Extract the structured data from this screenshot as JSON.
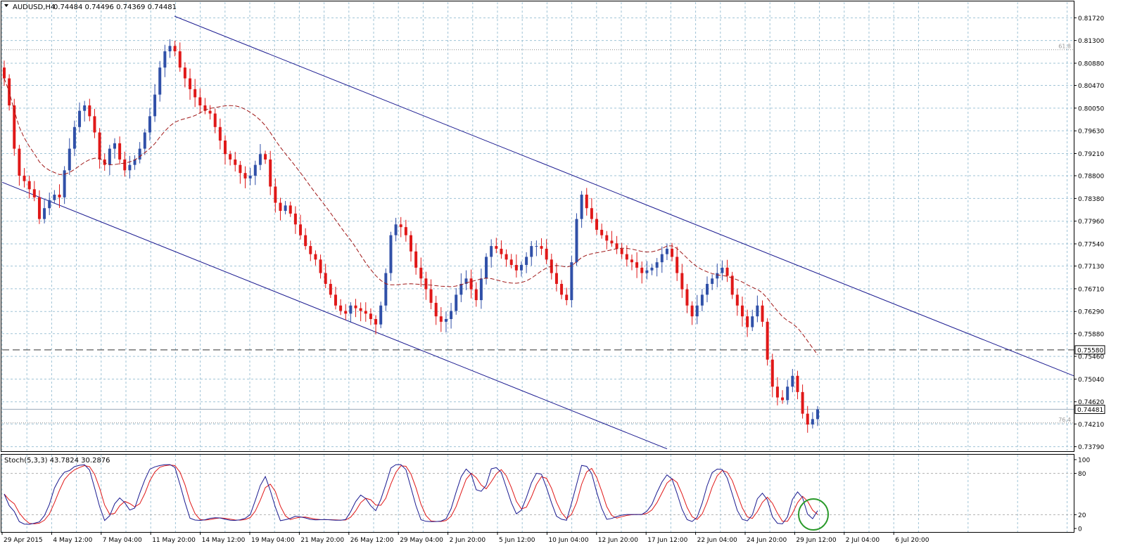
{
  "chart_data": {
    "type": "candlestick",
    "symbol_label": "AUDUSD,H4",
    "ohlc_label": "0.74484 0.74496 0.74369 0.74481",
    "price_ticks": [
      "0.81720",
      "0.81300",
      "0.80880",
      "0.80470",
      "0.80050",
      "0.79630",
      "0.79210",
      "0.78800",
      "0.78380",
      "0.77960",
      "0.77540",
      "0.77130",
      "0.76710",
      "0.76290",
      "0.75880",
      "0.75460",
      "0.75040",
      "0.74620",
      "0.74210",
      "0.73790"
    ],
    "price_range": [
      0.7372,
      0.8201
    ],
    "horizontal_level": {
      "value": 0.7558,
      "label": "0.75580"
    },
    "current_price": {
      "value": 0.74481,
      "label": "0.74481"
    },
    "fib_levels": [
      {
        "value": 0.8113,
        "label": "61.8"
      },
      {
        "value": 0.7423,
        "label": "76.4"
      }
    ],
    "x_ticks": [
      "29 Apr 2015",
      "4 May 12:00",
      "7 May 04:00",
      "11 May 20:00",
      "14 May 12:00",
      "19 May 04:00",
      "21 May 20:00",
      "26 May 12:00",
      "29 May 04:00",
      "2 Jun 20:00",
      "5 Jun 12:00",
      "10 Jun 04:00",
      "12 Jun 20:00",
      "17 Jun 12:00",
      "22 Jun 04:00",
      "24 Jun 20:00",
      "29 Jun 12:00",
      "2 Jul 04:00",
      "6 Jul 20:00"
    ],
    "closes": [
      0.806,
      0.801,
      0.793,
      0.788,
      0.787,
      0.7855,
      0.784,
      0.78,
      0.782,
      0.7835,
      0.7845,
      0.784,
      0.789,
      0.793,
      0.797,
      0.8,
      0.801,
      0.799,
      0.796,
      0.791,
      0.79,
      0.793,
      0.794,
      0.791,
      0.789,
      0.79,
      0.791,
      0.793,
      0.796,
      0.799,
      0.803,
      0.808,
      0.811,
      0.812,
      0.811,
      0.808,
      0.806,
      0.804,
      0.8025,
      0.801,
      0.8,
      0.7995,
      0.797,
      0.7945,
      0.792,
      0.791,
      0.79,
      0.7885,
      0.7875,
      0.788,
      0.79,
      0.792,
      0.791,
      0.786,
      0.783,
      0.7815,
      0.7825,
      0.781,
      0.779,
      0.777,
      0.775,
      0.7735,
      0.7725,
      0.77,
      0.768,
      0.766,
      0.764,
      0.763,
      0.7625,
      0.764,
      0.7635,
      0.763,
      0.7625,
      0.7615,
      0.7605,
      0.764,
      0.77,
      0.777,
      0.779,
      0.7785,
      0.777,
      0.774,
      0.771,
      0.769,
      0.767,
      0.7645,
      0.762,
      0.761,
      0.7615,
      0.763,
      0.766,
      0.768,
      0.769,
      0.767,
      0.765,
      0.769,
      0.773,
      0.775,
      0.7745,
      0.7735,
      0.7725,
      0.7715,
      0.7705,
      0.7715,
      0.773,
      0.775,
      0.775,
      0.7745,
      0.7725,
      0.77,
      0.768,
      0.766,
      0.765,
      0.772,
      0.78,
      0.7845,
      0.782,
      0.78,
      0.778,
      0.777,
      0.776,
      0.7755,
      0.7745,
      0.7735,
      0.7725,
      0.772,
      0.771,
      0.77,
      0.7705,
      0.771,
      0.772,
      0.7735,
      0.7745,
      0.773,
      0.77,
      0.767,
      0.764,
      0.762,
      0.764,
      0.766,
      0.768,
      0.769,
      0.77,
      0.771,
      0.7695,
      0.766,
      0.764,
      0.762,
      0.76,
      0.762,
      0.764,
      0.761,
      0.754,
      0.749,
      0.747,
      0.7465,
      0.749,
      0.751,
      0.748,
      0.744,
      0.742,
      0.743,
      0.7448
    ],
    "moving_average_color": "#a01818",
    "candle_up_color": "#3050a8",
    "candle_down_color": "#e01818",
    "channel_color": "#1a1a90",
    "stochastic": {
      "label": "Stoch(5,3,3) 43.7824 30.2876",
      "ticks": [
        "100",
        "80",
        "20",
        "0"
      ],
      "main_color": "#1a1a90",
      "signal_color": "#e01818",
      "highlight_color": "#2a9a2a"
    }
  }
}
